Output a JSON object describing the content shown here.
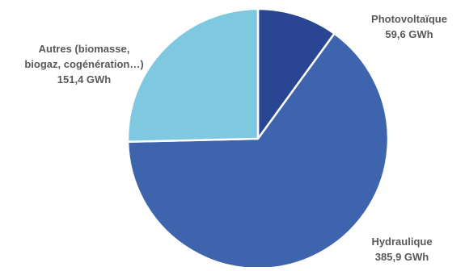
{
  "chart_data": {
    "type": "pie",
    "title": "",
    "unit": "GWh",
    "slices": [
      {
        "name": "Photovoltaïque",
        "value": 59.6,
        "value_label": "59,6 GWh",
        "color": "#2a4693",
        "label_lines": [
          "Photovoltaïque",
          "59,6 GWh"
        ]
      },
      {
        "name": "Hydraulique",
        "value": 385.9,
        "value_label": "385,9 GWh",
        "color": "#3e64ad",
        "label_lines": [
          "Hydraulique",
          "385,9 GWh"
        ]
      },
      {
        "name": "Autres (biomasse, biogaz, cogénération…)",
        "value": 151.4,
        "value_label": "151,4 GWh",
        "color": "#7ec8e0",
        "label_lines": [
          "Autres (biomasse,",
          "biogaz, cogénération…)",
          "151,4 GWh"
        ]
      }
    ],
    "start_angle_deg": 0,
    "direction": "clockwise",
    "label_color": "#595959",
    "legend": "none"
  }
}
